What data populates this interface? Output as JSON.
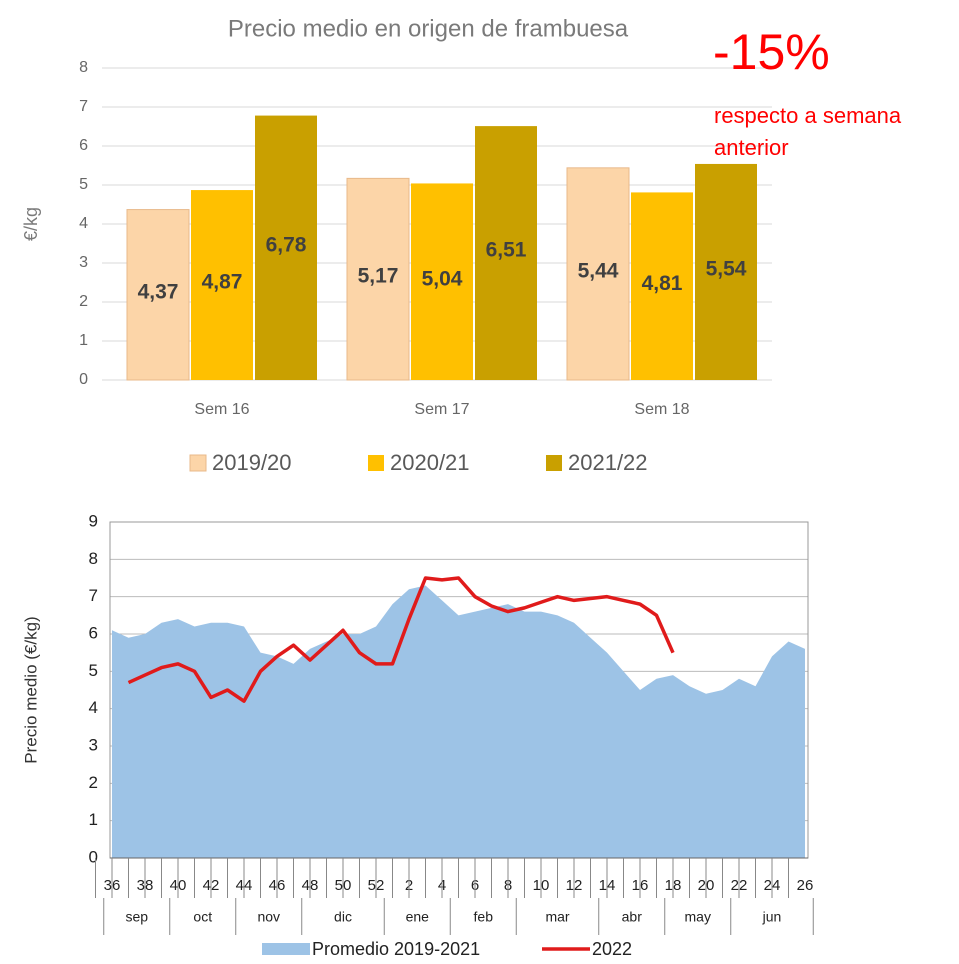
{
  "chart_data": [
    {
      "type": "bar",
      "title": "Precio medio en origen de frambuesa",
      "ylabel": "€/kg",
      "categories": [
        "Sem 16",
        "Sem 17",
        "Sem 18"
      ],
      "series": [
        {
          "name": "2019/20",
          "color": "#fcd5a8",
          "values": [
            4.37,
            5.17,
            5.44
          ],
          "value_labels": [
            "4,37",
            "5,17",
            "5,44"
          ]
        },
        {
          "name": "2020/21",
          "color": "#ffc000",
          "values": [
            4.87,
            5.04,
            4.81
          ],
          "value_labels": [
            "4,87",
            "5,04",
            "4,81"
          ]
        },
        {
          "name": "2021/22",
          "color": "#c9a000",
          "values": [
            6.78,
            6.51,
            5.54
          ],
          "value_labels": [
            "6,78",
            "6,51",
            "5,54"
          ]
        }
      ],
      "ylim": [
        0,
        8
      ],
      "yticks": [
        0,
        1,
        2,
        3,
        4,
        5,
        6,
        7,
        8
      ],
      "grid": true,
      "annotations": [
        "-15%",
        "respecto a semana anterior"
      ]
    },
    {
      "type": "line",
      "ylabel": "Precio medio (€/kg)",
      "categories": [
        36,
        null,
        38,
        null,
        40,
        null,
        42,
        null,
        44,
        null,
        46,
        null,
        48,
        null,
        50,
        null,
        52,
        null,
        2,
        null,
        4,
        null,
        6,
        null,
        8,
        null,
        10,
        null,
        12,
        null,
        14,
        null,
        16,
        null,
        18,
        null,
        20,
        null,
        22,
        null,
        24,
        null,
        26
      ],
      "months": [
        "sep",
        null,
        null,
        null,
        "oct",
        null,
        null,
        null,
        "nov",
        null,
        null,
        null,
        "dic",
        null,
        null,
        null,
        null,
        "ene",
        null,
        null,
        null,
        "feb",
        null,
        null,
        null,
        "mar",
        null,
        null,
        null,
        null,
        "abr",
        null,
        null,
        null,
        "may",
        null,
        null,
        null,
        "jun",
        null,
        null,
        null,
        null
      ],
      "series": [
        {
          "name": "Promedio 2019-2021",
          "type": "area",
          "color": "#9dc3e6",
          "values": [
            6.1,
            5.9,
            6.0,
            6.3,
            6.4,
            6.2,
            6.3,
            6.3,
            6.2,
            5.5,
            5.4,
            5.2,
            5.6,
            5.8,
            6.0,
            6.0,
            6.2,
            6.8,
            7.2,
            7.3,
            6.9,
            6.5,
            6.6,
            6.7,
            6.8,
            6.6,
            6.6,
            6.5,
            6.3,
            5.9,
            5.5,
            5.0,
            4.5,
            4.8,
            4.9,
            4.6,
            4.4,
            4.5,
            4.8,
            4.6,
            5.4,
            5.8,
            5.6
          ]
        },
        {
          "name": "2022",
          "type": "line",
          "color": "#e01b1b",
          "values": [
            null,
            4.7,
            4.9,
            5.1,
            5.2,
            5.0,
            4.3,
            4.5,
            4.2,
            5.0,
            5.4,
            5.7,
            5.3,
            5.7,
            6.1,
            5.5,
            5.2,
            5.2,
            6.4,
            7.5,
            7.45,
            7.5,
            7.0,
            6.75,
            6.6,
            6.7,
            6.85,
            7.0,
            6.9,
            6.95,
            7.0,
            6.9,
            6.8,
            6.5,
            5.5,
            null,
            null,
            null,
            null,
            null,
            null,
            null,
            null
          ]
        }
      ],
      "ylim": [
        0,
        9
      ],
      "yticks": [
        0,
        1,
        2,
        3,
        4,
        5,
        6,
        7,
        8,
        9
      ],
      "grid": true
    }
  ]
}
